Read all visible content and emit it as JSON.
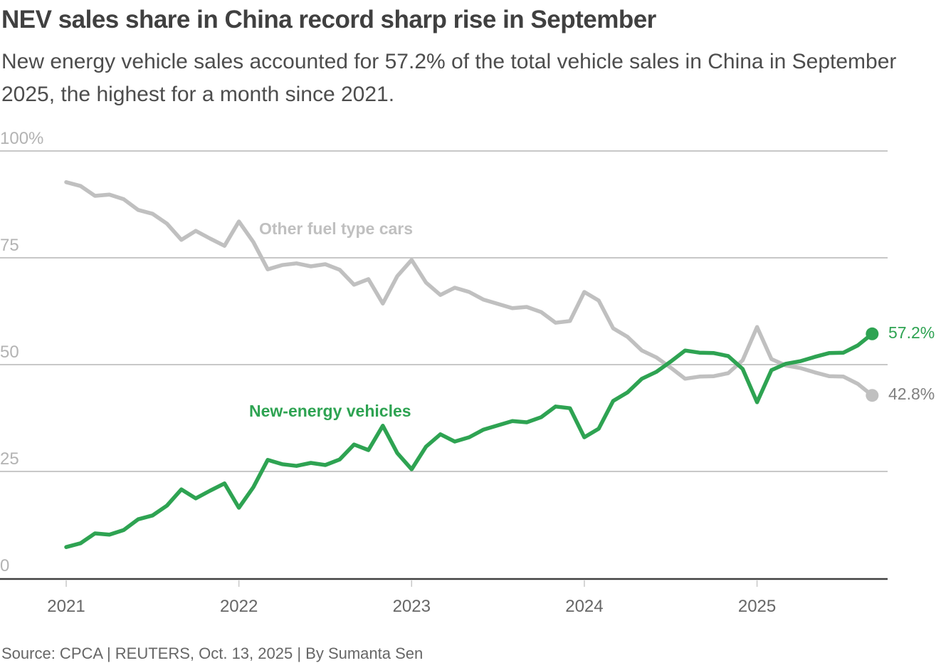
{
  "header": {
    "title": "NEV sales share in China record sharp rise in September",
    "subtitle": "New energy vehicle sales accounted for 57.2% of the total vehicle sales in China in September 2025, the highest for a month since 2021."
  },
  "footer": {
    "source": "Source: CPCA | REUTERS, Oct. 13, 2025 | By Sumanta Sen"
  },
  "colors": {
    "nev": "#2ea352",
    "other": "#c0c0c0",
    "grid": "#c8c8c8",
    "axis": "#404040"
  },
  "chart_data": {
    "type": "line",
    "title": "NEV sales share in China record sharp rise in September",
    "xlabel": "",
    "ylabel": "",
    "x_start": "2021-01",
    "x_frequency": "monthly",
    "x_ticks": [
      "2021",
      "2022",
      "2023",
      "2024",
      "2025"
    ],
    "y_ticks": [
      0,
      25,
      50,
      75,
      100
    ],
    "y_tick_labels": [
      "0",
      "25",
      "50",
      "75",
      "100%"
    ],
    "ylim": [
      0,
      100
    ],
    "grid": true,
    "series": [
      {
        "name": "Other fuel type cars",
        "label": "Other fuel type cars",
        "end_label": "42.8%",
        "values": [
          92.7,
          91.8,
          89.5,
          89.8,
          88.7,
          86.2,
          85.3,
          83.0,
          79.2,
          81.3,
          79.5,
          77.8,
          83.5,
          78.7,
          72.3,
          73.3,
          73.7,
          73.0,
          73.5,
          72.2,
          68.7,
          70.0,
          64.3,
          70.7,
          74.5,
          69.2,
          66.3,
          68.0,
          67.0,
          65.2,
          64.2,
          63.2,
          63.5,
          62.3,
          59.8,
          60.2,
          67.0,
          65.0,
          58.5,
          56.5,
          53.3,
          51.7,
          49.3,
          46.7,
          47.2,
          47.3,
          48.0,
          51.0,
          58.8,
          51.3,
          49.8,
          49.2,
          48.2,
          47.3,
          47.2,
          45.5,
          42.8
        ]
      },
      {
        "name": "New-energy vehicles",
        "label": "New-energy vehicles",
        "end_label": "57.2%",
        "values": [
          7.3,
          8.2,
          10.5,
          10.2,
          11.3,
          13.8,
          14.7,
          17.0,
          20.8,
          18.7,
          20.5,
          22.2,
          16.5,
          21.3,
          27.7,
          26.7,
          26.3,
          27.0,
          26.5,
          27.8,
          31.3,
          30.0,
          35.7,
          29.3,
          25.5,
          30.8,
          33.7,
          32.0,
          33.0,
          34.8,
          35.8,
          36.8,
          36.5,
          37.7,
          40.2,
          39.8,
          33.0,
          35.0,
          41.5,
          43.5,
          46.7,
          48.3,
          50.7,
          53.3,
          52.8,
          52.7,
          52.0,
          49.0,
          41.2,
          48.7,
          50.2,
          50.8,
          51.8,
          52.7,
          52.8,
          54.5,
          57.2
        ]
      }
    ],
    "legend": "inline labels",
    "annotations": [
      "57.2%",
      "42.8%"
    ]
  }
}
